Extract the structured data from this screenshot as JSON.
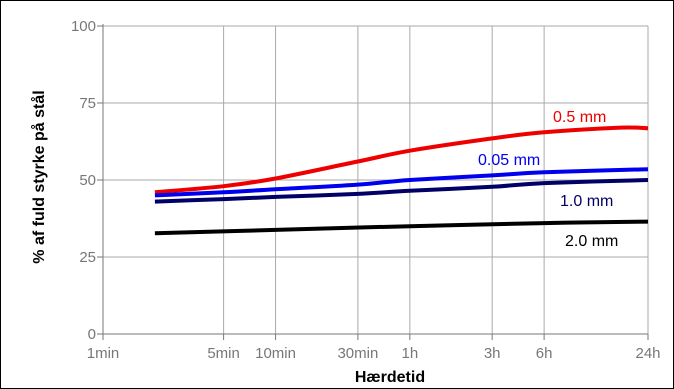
{
  "chart_data": {
    "type": "line",
    "title": "",
    "xlabel": "Hærdetid",
    "ylabel": "% af fuld styrke på stål",
    "x_scale": "log",
    "x_unit": "minutes",
    "xlim": [
      1,
      1440
    ],
    "ylim": [
      0,
      100
    ],
    "x_ticks": [
      {
        "label": "1min",
        "value": 1
      },
      {
        "label": "5min",
        "value": 5
      },
      {
        "label": "10min",
        "value": 10
      },
      {
        "label": "30min",
        "value": 30
      },
      {
        "label": "1h",
        "value": 60
      },
      {
        "label": "3h",
        "value": 180
      },
      {
        "label": "6h",
        "value": 360
      },
      {
        "label": "24h",
        "value": 1440
      }
    ],
    "y_ticks": [
      {
        "label": "0",
        "value": 0
      },
      {
        "label": "25",
        "value": 25
      },
      {
        "label": "50",
        "value": 50
      },
      {
        "label": "75",
        "value": 75
      },
      {
        "label": "100",
        "value": 100
      }
    ],
    "grid": true,
    "legend": "none",
    "series": [
      {
        "name": "0.5 mm",
        "color": "#ee0000",
        "x": [
          2,
          5,
          10,
          30,
          60,
          180,
          360,
          1000,
          1440
        ],
        "y": [
          46,
          48,
          50.5,
          56,
          59.5,
          63.5,
          65.5,
          67,
          66.8
        ]
      },
      {
        "name": "0.05 mm",
        "color": "#0000ee",
        "x": [
          2,
          5,
          10,
          30,
          60,
          180,
          360,
          1440
        ],
        "y": [
          45,
          46,
          47,
          48.5,
          50,
          51.5,
          52.5,
          53.5
        ]
      },
      {
        "name": "1.0 mm",
        "color": "#000066",
        "x": [
          2,
          5,
          10,
          30,
          60,
          180,
          360,
          1440
        ],
        "y": [
          43,
          43.8,
          44.5,
          45.5,
          46.5,
          47.8,
          49,
          50
        ]
      },
      {
        "name": "2.0 mm",
        "color": "#000000",
        "x": [
          2,
          10,
          60,
          360,
          1440
        ],
        "y": [
          32.7,
          33.8,
          35,
          36,
          36.5
        ]
      }
    ]
  }
}
